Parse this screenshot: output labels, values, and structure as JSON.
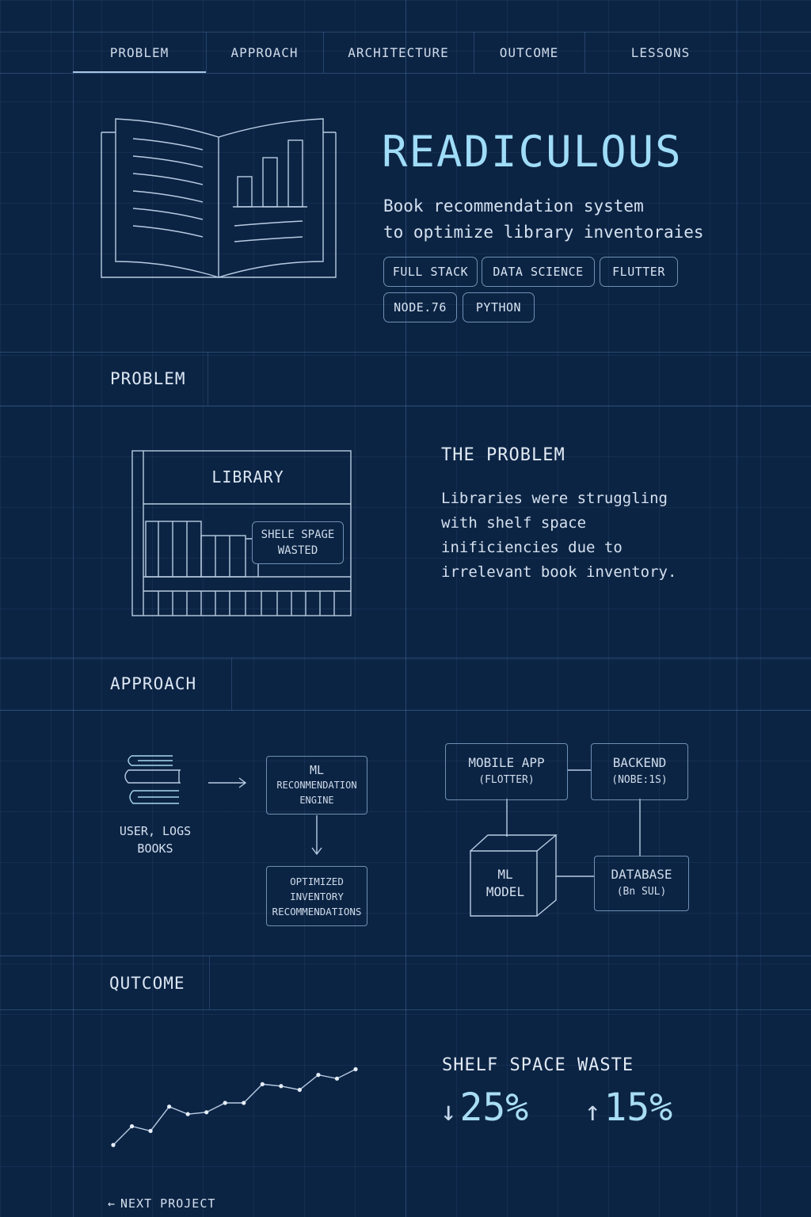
{
  "nav": {
    "tabs": [
      "PROBLEM",
      "APPROACH",
      "ARCHITECTURE",
      "OUTCOME",
      "LESSONS"
    ],
    "active": "PROBLEM"
  },
  "hero": {
    "title": "READICULOUS",
    "subtitle": "Book recommendation system\nto optimize library inventoraies",
    "tags": [
      "FULL STACK",
      "DATA SCIENCE",
      "FLUTTER",
      "NODE.76",
      "PYTHON"
    ]
  },
  "problem": {
    "section_label": "PROBLEM",
    "library_label": "LIBRARY",
    "callout": "SHELE SPAGE\nWASTED",
    "heading": "THE PROBLEM",
    "body": "Libraries were struggling\nwith shelf space\ninificiencies due to\nirrelevant book inventory."
  },
  "approach": {
    "section_label": "APPROACH",
    "input_label": "USER, LOGS\nBOOKS",
    "engine_title": "ML",
    "engine_sub": "RECONMENDATION\nENGINE",
    "output": "OPTIMIZED\nINVENTORY\nRECOMMENDATIONS",
    "arch": {
      "mobile": "MOBILE APP",
      "mobile_sub": "(FLOTTER)",
      "backend": "BACKEND",
      "backend_sub": "(NOBE:1S)",
      "model": "ML\nMODEL",
      "database": "DATABASE",
      "database_sub": "(Bn SUL)"
    }
  },
  "outcome": {
    "section_label": "QUTCOME",
    "metric_title": "SHELF SPACE WASTE",
    "metrics": [
      {
        "arrow": "↓",
        "value": "25%"
      },
      {
        "arrow": "↑",
        "value": "15%"
      }
    ],
    "trend": [
      0.05,
      0.25,
      0.2,
      0.46,
      0.38,
      0.4,
      0.5,
      0.5,
      0.7,
      0.68,
      0.64,
      0.8,
      0.76,
      0.86
    ]
  },
  "footer": {
    "next": "NEXT PROJECT"
  },
  "colors": {
    "background": "#0c2444",
    "accent": "#9fdcf7",
    "line": "#b8cce2"
  }
}
